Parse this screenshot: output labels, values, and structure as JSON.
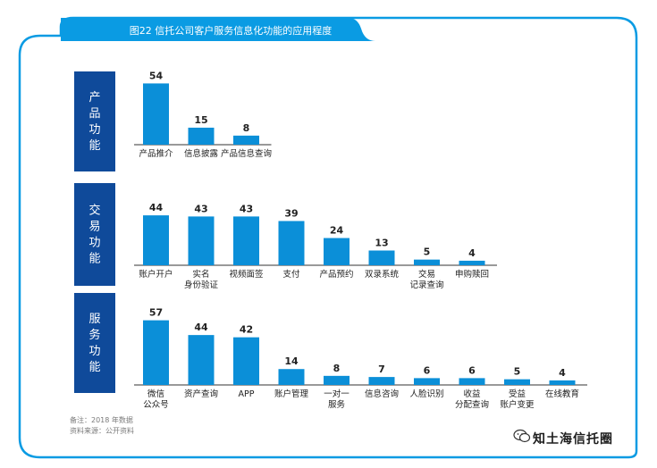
{
  "title": "图22 信托公司客户服务信息化功能的应用程度",
  "colors": {
    "bar": "#0b8fd8",
    "panel": "#0f4a9a",
    "frame": "#0a9be3",
    "axis": "#333333"
  },
  "footnote": {
    "note": "备注：2018 年数据",
    "source": "资料来源：公开资料"
  },
  "watermark": "知土海信托圈",
  "chart_data": [
    {
      "type": "bar",
      "group": "产品功能",
      "categories": [
        "产品推介",
        "信息披露",
        "产品信息查询"
      ],
      "values": [
        54,
        15,
        8
      ],
      "ylim": [
        0,
        60
      ]
    },
    {
      "type": "bar",
      "group": "交易功能",
      "categories": [
        "账户开户",
        "实名\n身份验证",
        "视频面签",
        "支付",
        "产品预约",
        "双录系统",
        "交易\n记录查询",
        "申购赎回"
      ],
      "values": [
        44,
        43,
        43,
        39,
        24,
        13,
        5,
        4
      ],
      "ylim": [
        0,
        60
      ]
    },
    {
      "type": "bar",
      "group": "服务功能",
      "categories": [
        "微信\n公众号",
        "资产查询",
        "APP",
        "账户管理",
        "一对一\n服务",
        "信息咨询",
        "人脸识别",
        "收益\n分配查询",
        "受益\n账户变更",
        "在线教育"
      ],
      "values": [
        57,
        44,
        42,
        14,
        8,
        7,
        6,
        6,
        5,
        4
      ],
      "ylim": [
        0,
        60
      ]
    }
  ]
}
